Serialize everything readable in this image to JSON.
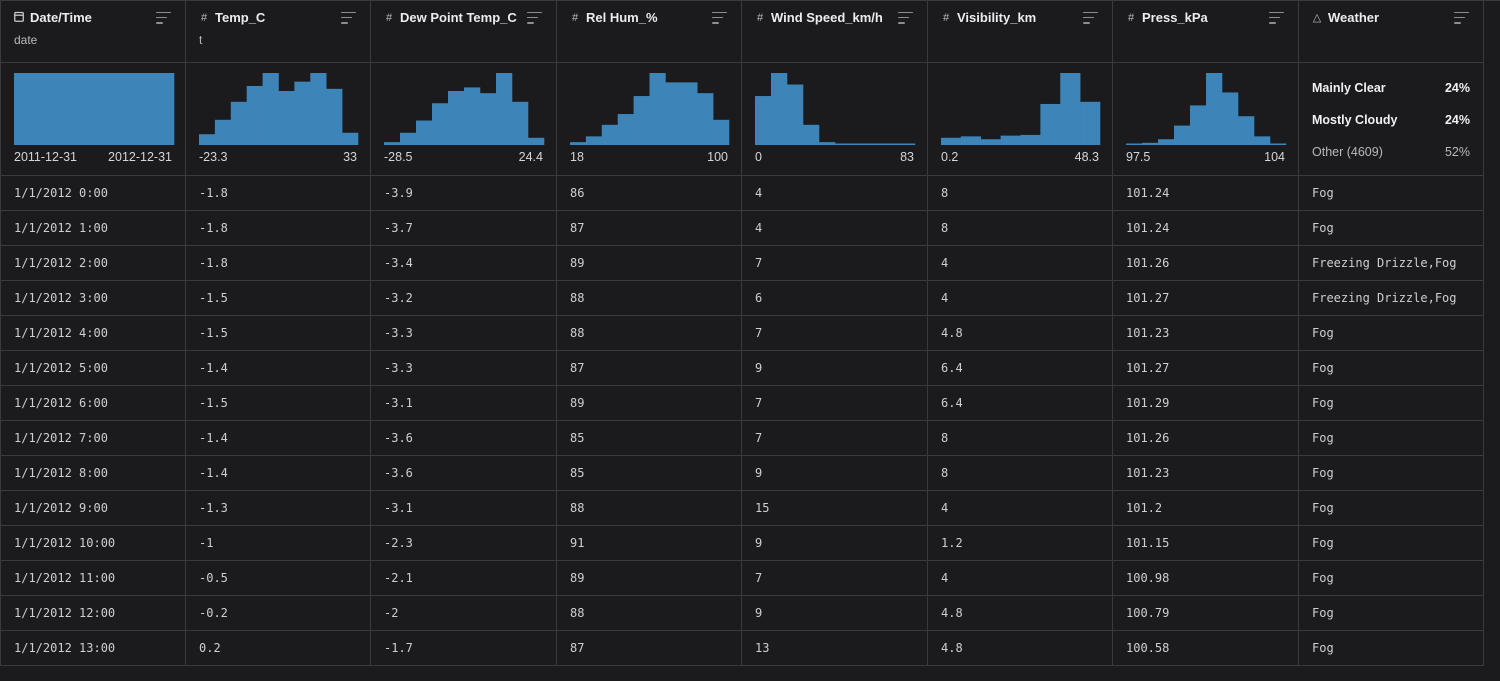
{
  "colors": {
    "background": "#1b1b1e",
    "bar": "#3d84b8",
    "grid": "#3a3a3f"
  },
  "columns": [
    {
      "name": "Date/Time",
      "type_icon": "calendar-icon",
      "subtitle": "date"
    },
    {
      "name": "Temp_C",
      "type_icon": "hash-icon",
      "subtitle": "t"
    },
    {
      "name": "Dew Point Temp_C",
      "type_icon": "hash-icon",
      "subtitle": ""
    },
    {
      "name": "Rel Hum_%",
      "type_icon": "hash-icon",
      "subtitle": ""
    },
    {
      "name": "Wind Speed_km/h",
      "type_icon": "hash-icon",
      "subtitle": ""
    },
    {
      "name": "Visibility_km",
      "type_icon": "hash-icon",
      "subtitle": ""
    },
    {
      "name": "Press_kPa",
      "type_icon": "hash-icon",
      "subtitle": ""
    },
    {
      "name": "Weather",
      "type_icon": "text-type-icon",
      "subtitle": ""
    }
  ],
  "chart_data": [
    {
      "type": "bar",
      "column": "Date/Time",
      "range": [
        "2011-12-31",
        "2012-12-31"
      ],
      "values": [
        1
      ]
    },
    {
      "type": "bar",
      "column": "Temp_C",
      "range": [
        "-23.3",
        "33"
      ],
      "values": [
        0.15,
        0.35,
        0.6,
        0.82,
        1.0,
        0.75,
        0.88,
        1.0,
        0.78,
        0.17
      ]
    },
    {
      "type": "bar",
      "column": "Dew Point Temp_C",
      "range": [
        "-28.5",
        "24.4"
      ],
      "values": [
        0.04,
        0.17,
        0.34,
        0.58,
        0.75,
        0.8,
        0.72,
        1.0,
        0.6,
        0.1
      ]
    },
    {
      "type": "bar",
      "column": "Rel Hum_%",
      "range": [
        "18",
        "100"
      ],
      "values": [
        0.04,
        0.12,
        0.28,
        0.43,
        0.68,
        1.0,
        0.87,
        0.87,
        0.72,
        0.35
      ]
    },
    {
      "type": "bar",
      "column": "Wind Speed_km/h",
      "range": [
        "0",
        "83"
      ],
      "values": [
        0.68,
        1.0,
        0.84,
        0.28,
        0.04,
        0.02,
        0.01,
        0.01,
        0.01,
        0.005
      ]
    },
    {
      "type": "bar",
      "column": "Visibility_km",
      "range": [
        "0.2",
        "48.3"
      ],
      "values": [
        0.1,
        0.12,
        0.08,
        0.13,
        0.14,
        0.57,
        1.0,
        0.6
      ]
    },
    {
      "type": "bar",
      "column": "Press_kPa",
      "range": [
        "97.5",
        "104"
      ],
      "values": [
        0.01,
        0.03,
        0.08,
        0.27,
        0.55,
        1.0,
        0.73,
        0.4,
        0.12,
        0.02
      ]
    }
  ],
  "weather_summary": [
    {
      "label": "Mainly Clear",
      "pct": "24%"
    },
    {
      "label": "Mostly Cloudy",
      "pct": "24%"
    },
    {
      "label": "Other (4609)",
      "pct": "52%"
    }
  ],
  "rows": [
    [
      "1/1/2012 0:00",
      "-1.8",
      "-3.9",
      "86",
      "4",
      "8",
      "101.24",
      "Fog"
    ],
    [
      "1/1/2012 1:00",
      "-1.8",
      "-3.7",
      "87",
      "4",
      "8",
      "101.24",
      "Fog"
    ],
    [
      "1/1/2012 2:00",
      "-1.8",
      "-3.4",
      "89",
      "7",
      "4",
      "101.26",
      "Freezing Drizzle,Fog"
    ],
    [
      "1/1/2012 3:00",
      "-1.5",
      "-3.2",
      "88",
      "6",
      "4",
      "101.27",
      "Freezing Drizzle,Fog"
    ],
    [
      "1/1/2012 4:00",
      "-1.5",
      "-3.3",
      "88",
      "7",
      "4.8",
      "101.23",
      "Fog"
    ],
    [
      "1/1/2012 5:00",
      "-1.4",
      "-3.3",
      "87",
      "9",
      "6.4",
      "101.27",
      "Fog"
    ],
    [
      "1/1/2012 6:00",
      "-1.5",
      "-3.1",
      "89",
      "7",
      "6.4",
      "101.29",
      "Fog"
    ],
    [
      "1/1/2012 7:00",
      "-1.4",
      "-3.6",
      "85",
      "7",
      "8",
      "101.26",
      "Fog"
    ],
    [
      "1/1/2012 8:00",
      "-1.4",
      "-3.6",
      "85",
      "9",
      "8",
      "101.23",
      "Fog"
    ],
    [
      "1/1/2012 9:00",
      "-1.3",
      "-3.1",
      "88",
      "15",
      "4",
      "101.2",
      "Fog"
    ],
    [
      "1/1/2012 10:00",
      "-1",
      "-2.3",
      "91",
      "9",
      "1.2",
      "101.15",
      "Fog"
    ],
    [
      "1/1/2012 11:00",
      "-0.5",
      "-2.1",
      "89",
      "7",
      "4",
      "100.98",
      "Fog"
    ],
    [
      "1/1/2012 12:00",
      "-0.2",
      "-2",
      "88",
      "9",
      "4.8",
      "100.79",
      "Fog"
    ],
    [
      "1/1/2012 13:00",
      "0.2",
      "-1.7",
      "87",
      "13",
      "4.8",
      "100.58",
      "Fog"
    ]
  ]
}
